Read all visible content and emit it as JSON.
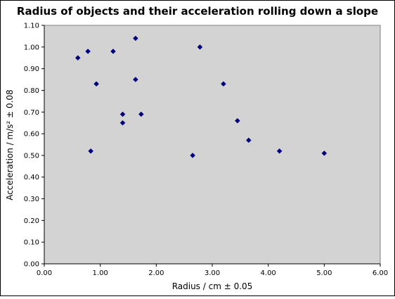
{
  "chart_data": {
    "type": "scatter",
    "title": "Radius of objects and their acceleration rolling down a slope",
    "xlabel": "Radius / cm ± 0.05",
    "ylabel": "Acceleration / m/s² ± 0.08",
    "xlim": [
      0,
      6
    ],
    "ylim": [
      0,
      1.1
    ],
    "x_ticks": [
      "0.00",
      "1.00",
      "2.00",
      "3.00",
      "4.00",
      "5.00",
      "6.00"
    ],
    "y_ticks": [
      "0.00",
      "0.10",
      "0.20",
      "0.30",
      "0.40",
      "0.50",
      "0.60",
      "0.70",
      "0.80",
      "0.90",
      "1.00",
      "1.10"
    ],
    "grid": false,
    "legend": "none",
    "colors": {
      "plot_background": "#d3d3d3",
      "marker": "#000080",
      "frame": "#000000"
    },
    "series": [
      {
        "marker": "diamond",
        "points": [
          {
            "x": 0.6,
            "y": 0.95
          },
          {
            "x": 0.78,
            "y": 0.98
          },
          {
            "x": 0.83,
            "y": 0.52
          },
          {
            "x": 0.93,
            "y": 0.83
          },
          {
            "x": 1.23,
            "y": 0.98
          },
          {
            "x": 1.4,
            "y": 0.69
          },
          {
            "x": 1.4,
            "y": 0.65
          },
          {
            "x": 1.63,
            "y": 1.04
          },
          {
            "x": 1.63,
            "y": 0.85
          },
          {
            "x": 1.73,
            "y": 0.69
          },
          {
            "x": 2.65,
            "y": 0.5
          },
          {
            "x": 2.78,
            "y": 1.0
          },
          {
            "x": 3.2,
            "y": 0.83
          },
          {
            "x": 3.45,
            "y": 0.66
          },
          {
            "x": 3.65,
            "y": 0.57
          },
          {
            "x": 4.2,
            "y": 0.52
          },
          {
            "x": 5.0,
            "y": 0.51
          }
        ]
      }
    ]
  }
}
